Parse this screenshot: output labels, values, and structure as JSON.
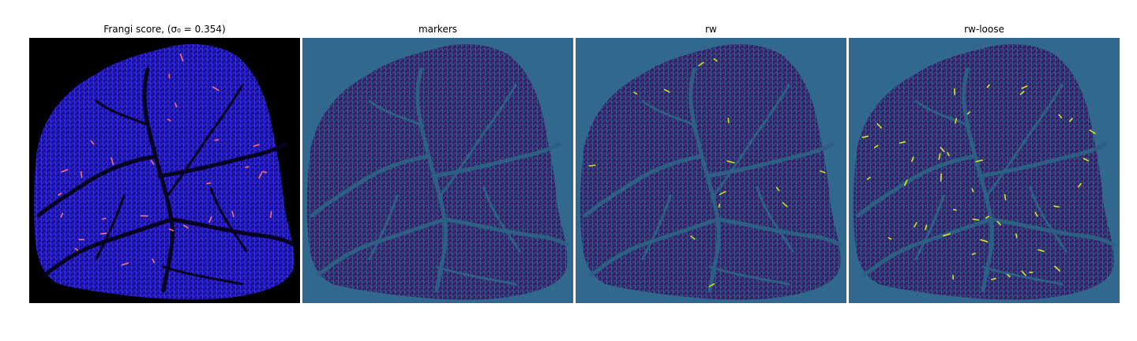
{
  "figure": {
    "panels": [
      {
        "title": "Frangi score, (σ₀ = 0.354)",
        "background": "#000000",
        "tissue_fill": "#1a1090",
        "texture": "#3a34ff",
        "vessel": "#05031f",
        "highlight": "#ff7070",
        "highlight_count": 30
      },
      {
        "title": "markers",
        "background": "#31688e",
        "tissue_fill": "#3d1a6b",
        "texture": "#2f6c8c",
        "vessel": "#2d5f85",
        "highlight": "#c9e020",
        "highlight_count": 0
      },
      {
        "title": "rw",
        "background": "#31688e",
        "tissue_fill": "#3d1a6b",
        "texture": "#2f6c8c",
        "vessel": "#2d5f85",
        "highlight": "#c9e020",
        "highlight_count": 14
      },
      {
        "title": "rw-loose",
        "background": "#31688e",
        "tissue_fill": "#3d1a6b",
        "texture": "#2f6c8c",
        "vessel": "#2d5f85",
        "highlight": "#d8e822",
        "highlight_count": 45
      }
    ]
  }
}
